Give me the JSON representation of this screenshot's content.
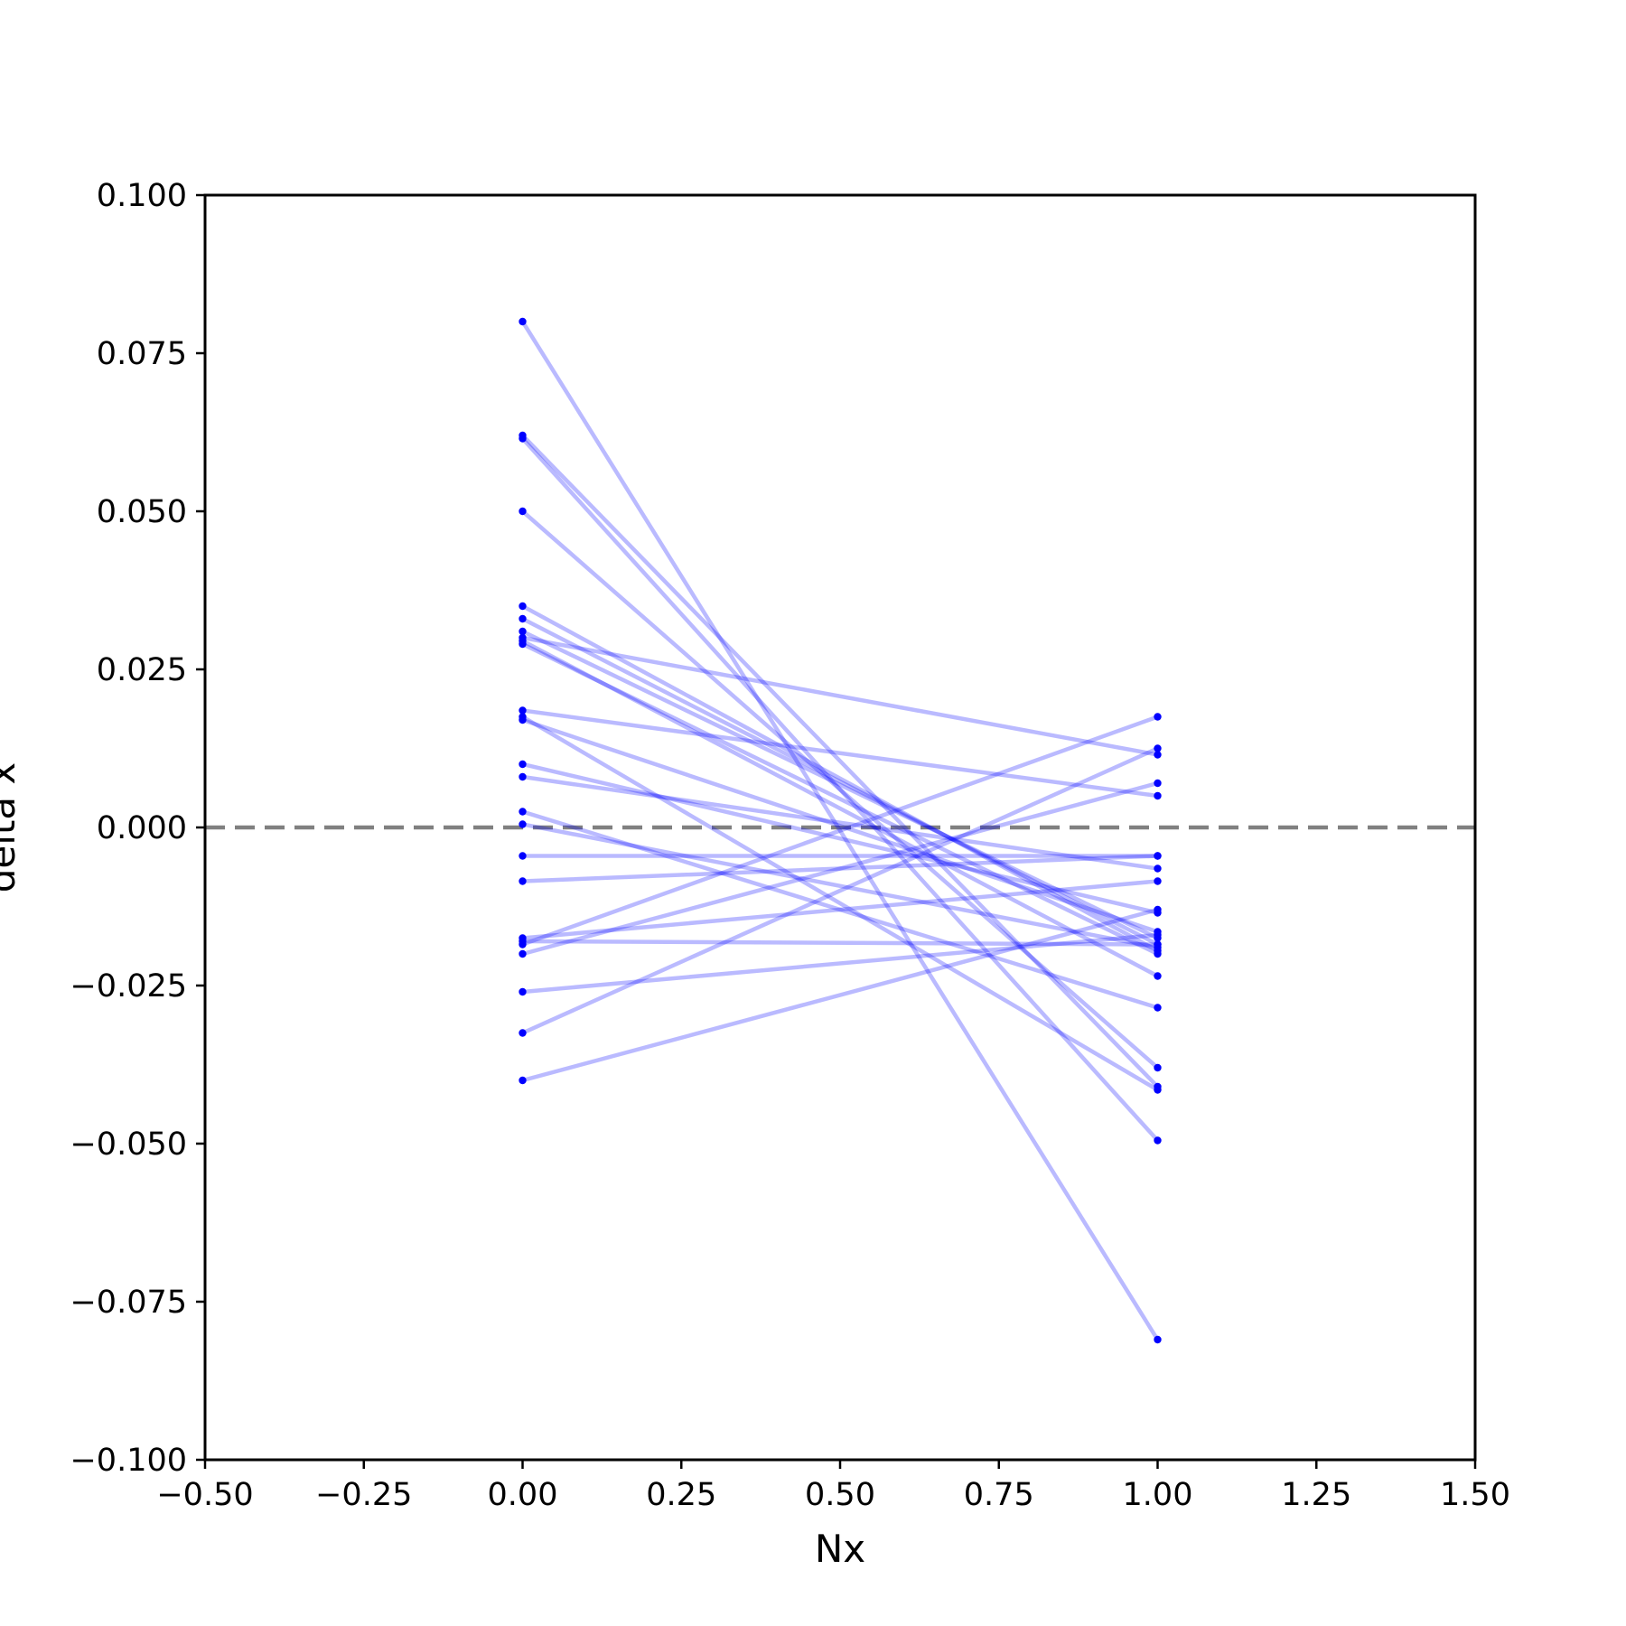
{
  "chart_data": {
    "type": "line",
    "title": "",
    "xlabel": "Nx",
    "ylabel": "delta x",
    "xlim": [
      -0.5,
      1.5
    ],
    "ylim": [
      -0.1,
      0.1
    ],
    "xticks": [
      -0.5,
      -0.25,
      0.0,
      0.25,
      0.5,
      0.75,
      1.0,
      1.25,
      1.5
    ],
    "yticks": [
      -0.1,
      -0.075,
      -0.05,
      -0.025,
      0.0,
      0.025,
      0.05,
      0.075,
      0.1
    ],
    "xtick_labels": [
      "−0.50",
      "−0.25",
      "0.00",
      "0.25",
      "0.50",
      "0.75",
      "1.00",
      "1.25",
      "1.50"
    ],
    "ytick_labels": [
      "−0.100",
      "−0.075",
      "−0.050",
      "−0.025",
      "0.000",
      "0.025",
      "0.050",
      "0.075",
      "0.100"
    ],
    "grid": false,
    "legend": "none",
    "colors": {
      "series": "#0000ff",
      "reference": "#808080",
      "axes": "#000000"
    },
    "reference_line": {
      "y": 0.0,
      "style": "dashed"
    },
    "pairs": [
      {
        "x": [
          0,
          1
        ],
        "y": [
          0.08,
          -0.081
        ]
      },
      {
        "x": [
          0,
          1
        ],
        "y": [
          0.062,
          -0.041
        ]
      },
      {
        "x": [
          0,
          1
        ],
        "y": [
          0.0615,
          -0.0495
        ]
      },
      {
        "x": [
          0,
          1
        ],
        "y": [
          0.05,
          -0.038
        ]
      },
      {
        "x": [
          0,
          1
        ],
        "y": [
          0.035,
          -0.0195
        ]
      },
      {
        "x": [
          0,
          1
        ],
        "y": [
          0.033,
          -0.0185
        ]
      },
      {
        "x": [
          0,
          1
        ],
        "y": [
          0.031,
          -0.0175
        ]
      },
      {
        "x": [
          0,
          1
        ],
        "y": [
          0.03,
          0.0115
        ]
      },
      {
        "x": [
          0,
          1
        ],
        "y": [
          0.0295,
          -0.0235
        ]
      },
      {
        "x": [
          0,
          1
        ],
        "y": [
          0.029,
          -0.02
        ]
      },
      {
        "x": [
          0,
          1
        ],
        "y": [
          0.0185,
          0.005
        ]
      },
      {
        "x": [
          0,
          1
        ],
        "y": [
          0.0175,
          -0.0415
        ]
      },
      {
        "x": [
          0,
          1
        ],
        "y": [
          0.017,
          -0.0165
        ]
      },
      {
        "x": [
          0,
          1
        ],
        "y": [
          0.01,
          -0.0135
        ]
      },
      {
        "x": [
          0,
          1
        ],
        "y": [
          0.008,
          -0.0065
        ]
      },
      {
        "x": [
          0,
          1
        ],
        "y": [
          0.0025,
          -0.0285
        ]
      },
      {
        "x": [
          0,
          1
        ],
        "y": [
          0.0005,
          -0.019
        ]
      },
      {
        "x": [
          0,
          1
        ],
        "y": [
          -0.0045,
          -0.0045
        ]
      },
      {
        "x": [
          0,
          1
        ],
        "y": [
          -0.0085,
          -0.0045
        ]
      },
      {
        "x": [
          0,
          1
        ],
        "y": [
          -0.0175,
          -0.0085
        ]
      },
      {
        "x": [
          0,
          1
        ],
        "y": [
          -0.018,
          -0.0185
        ]
      },
      {
        "x": [
          0,
          1
        ],
        "y": [
          -0.0185,
          0.0175
        ]
      },
      {
        "x": [
          0,
          1
        ],
        "y": [
          -0.02,
          0.007
        ]
      },
      {
        "x": [
          0,
          1
        ],
        "y": [
          -0.026,
          -0.017
        ]
      },
      {
        "x": [
          0,
          1
        ],
        "y": [
          -0.0325,
          0.0125
        ]
      },
      {
        "x": [
          0,
          1
        ],
        "y": [
          -0.04,
          -0.013
        ]
      }
    ]
  }
}
